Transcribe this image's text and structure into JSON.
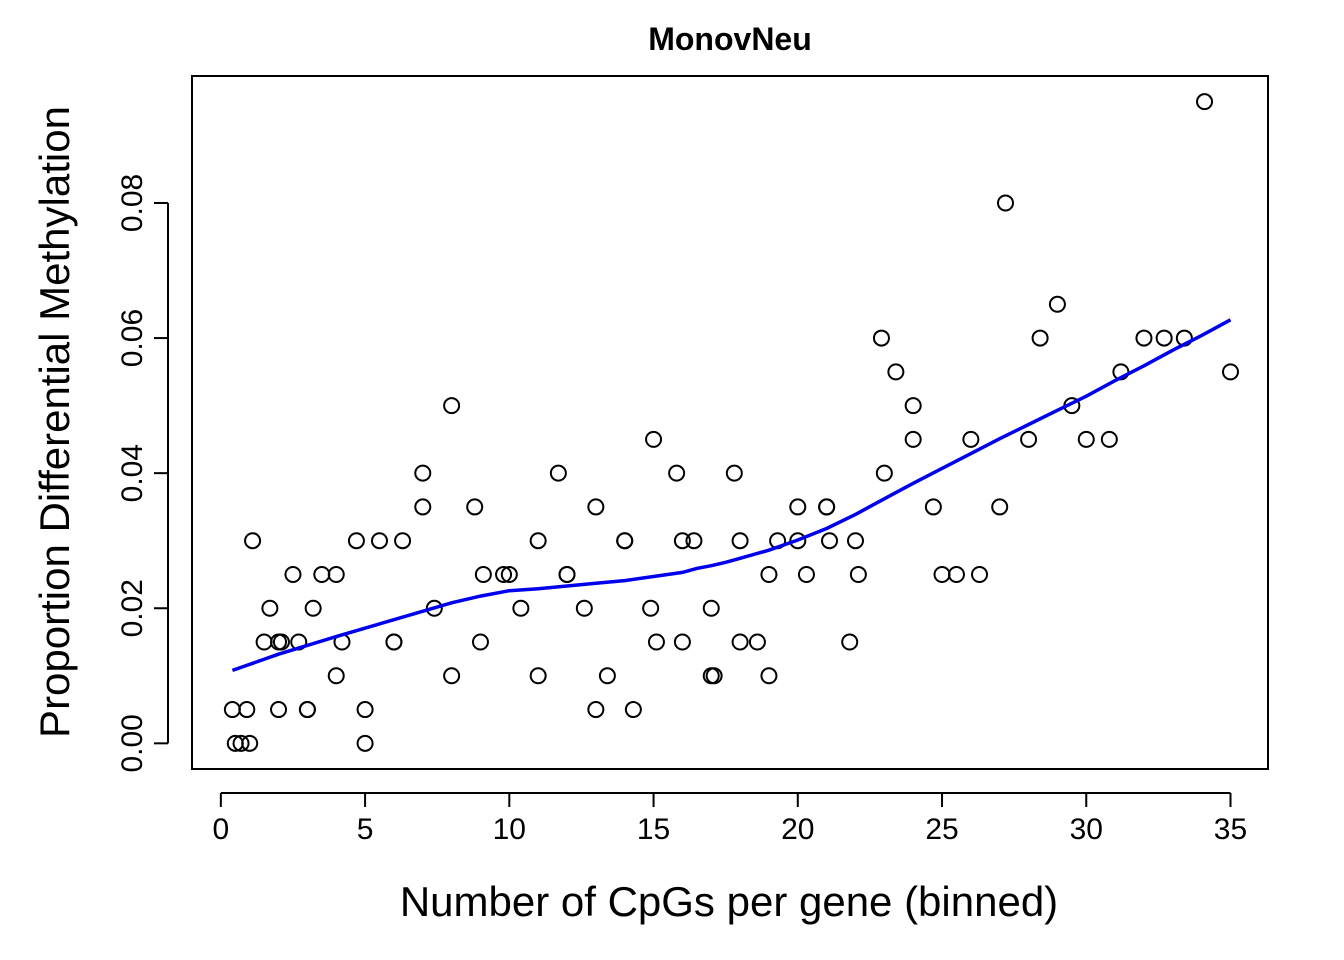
{
  "chart_data": {
    "type": "scatter",
    "title": "MonovNeu",
    "xlabel": "Number of CpGs per gene (binned)",
    "ylabel": "Proportion Differential Methylation",
    "xlim": [
      -1,
      36.3
    ],
    "ylim": [
      -0.0038,
      0.0988
    ],
    "xticks": [
      0,
      5,
      10,
      15,
      20,
      25,
      30,
      35
    ],
    "yticks": [
      0.0,
      0.02,
      0.04,
      0.06,
      0.08
    ],
    "ytick_labels": [
      "0.00",
      "0.02",
      "0.04",
      "0.06",
      "0.08"
    ],
    "grid": false,
    "legend": "none",
    "point_marker": "open-circle",
    "trend_color": "#0000ee",
    "points": [
      {
        "x": 0.4,
        "y": 0.005
      },
      {
        "x": 0.5,
        "y": 0.0
      },
      {
        "x": 0.7,
        "y": 0.0
      },
      {
        "x": 0.9,
        "y": 0.005
      },
      {
        "x": 1.0,
        "y": 0.0
      },
      {
        "x": 1.1,
        "y": 0.03
      },
      {
        "x": 1.5,
        "y": 0.015
      },
      {
        "x": 1.7,
        "y": 0.02
      },
      {
        "x": 2.0,
        "y": 0.015
      },
      {
        "x": 2.0,
        "y": 0.005
      },
      {
        "x": 2.1,
        "y": 0.015
      },
      {
        "x": 2.5,
        "y": 0.025
      },
      {
        "x": 2.7,
        "y": 0.015
      },
      {
        "x": 3.0,
        "y": 0.005
      },
      {
        "x": 3.0,
        "y": 0.005
      },
      {
        "x": 3.2,
        "y": 0.02
      },
      {
        "x": 3.5,
        "y": 0.025
      },
      {
        "x": 4.0,
        "y": 0.025
      },
      {
        "x": 4.0,
        "y": 0.01
      },
      {
        "x": 4.2,
        "y": 0.015
      },
      {
        "x": 4.7,
        "y": 0.03
      },
      {
        "x": 5.0,
        "y": 0.005
      },
      {
        "x": 5.0,
        "y": 0.0
      },
      {
        "x": 5.5,
        "y": 0.03
      },
      {
        "x": 6.0,
        "y": 0.015
      },
      {
        "x": 6.0,
        "y": 0.015
      },
      {
        "x": 6.3,
        "y": 0.03
      },
      {
        "x": 7.0,
        "y": 0.04
      },
      {
        "x": 7.0,
        "y": 0.035
      },
      {
        "x": 7.4,
        "y": 0.02
      },
      {
        "x": 8.0,
        "y": 0.05
      },
      {
        "x": 8.0,
        "y": 0.01
      },
      {
        "x": 8.8,
        "y": 0.035
      },
      {
        "x": 9.0,
        "y": 0.015
      },
      {
        "x": 9.1,
        "y": 0.025
      },
      {
        "x": 9.8,
        "y": 0.025
      },
      {
        "x": 10.0,
        "y": 0.025
      },
      {
        "x": 10.4,
        "y": 0.02
      },
      {
        "x": 11.0,
        "y": 0.03
      },
      {
        "x": 11.0,
        "y": 0.01
      },
      {
        "x": 11.7,
        "y": 0.04
      },
      {
        "x": 12.0,
        "y": 0.025
      },
      {
        "x": 12.0,
        "y": 0.025
      },
      {
        "x": 12.6,
        "y": 0.02
      },
      {
        "x": 13.0,
        "y": 0.035
      },
      {
        "x": 13.0,
        "y": 0.005
      },
      {
        "x": 13.4,
        "y": 0.01
      },
      {
        "x": 14.0,
        "y": 0.03
      },
      {
        "x": 14.0,
        "y": 0.03
      },
      {
        "x": 14.3,
        "y": 0.005
      },
      {
        "x": 14.9,
        "y": 0.02
      },
      {
        "x": 15.0,
        "y": 0.045
      },
      {
        "x": 15.1,
        "y": 0.015
      },
      {
        "x": 15.8,
        "y": 0.04
      },
      {
        "x": 16.0,
        "y": 0.03
      },
      {
        "x": 16.0,
        "y": 0.015
      },
      {
        "x": 16.4,
        "y": 0.03
      },
      {
        "x": 17.0,
        "y": 0.02
      },
      {
        "x": 17.0,
        "y": 0.01
      },
      {
        "x": 17.1,
        "y": 0.01
      },
      {
        "x": 17.8,
        "y": 0.04
      },
      {
        "x": 18.0,
        "y": 0.03
      },
      {
        "x": 18.0,
        "y": 0.015
      },
      {
        "x": 18.6,
        "y": 0.015
      },
      {
        "x": 19.0,
        "y": 0.025
      },
      {
        "x": 19.0,
        "y": 0.01
      },
      {
        "x": 19.3,
        "y": 0.03
      },
      {
        "x": 20.0,
        "y": 0.035
      },
      {
        "x": 20.0,
        "y": 0.03
      },
      {
        "x": 20.3,
        "y": 0.025
      },
      {
        "x": 21.0,
        "y": 0.035
      },
      {
        "x": 21.0,
        "y": 0.035
      },
      {
        "x": 21.1,
        "y": 0.03
      },
      {
        "x": 21.8,
        "y": 0.015
      },
      {
        "x": 22.0,
        "y": 0.03
      },
      {
        "x": 22.1,
        "y": 0.025
      },
      {
        "x": 22.9,
        "y": 0.06
      },
      {
        "x": 23.0,
        "y": 0.04
      },
      {
        "x": 23.4,
        "y": 0.055
      },
      {
        "x": 24.0,
        "y": 0.05
      },
      {
        "x": 24.0,
        "y": 0.045
      },
      {
        "x": 24.7,
        "y": 0.035
      },
      {
        "x": 25.0,
        "y": 0.025
      },
      {
        "x": 25.5,
        "y": 0.025
      },
      {
        "x": 26.0,
        "y": 0.045
      },
      {
        "x": 26.3,
        "y": 0.025
      },
      {
        "x": 27.0,
        "y": 0.035
      },
      {
        "x": 27.2,
        "y": 0.08
      },
      {
        "x": 28.0,
        "y": 0.045
      },
      {
        "x": 28.4,
        "y": 0.06
      },
      {
        "x": 29.0,
        "y": 0.065
      },
      {
        "x": 29.5,
        "y": 0.05
      },
      {
        "x": 30.0,
        "y": 0.045
      },
      {
        "x": 30.8,
        "y": 0.045
      },
      {
        "x": 31.2,
        "y": 0.055
      },
      {
        "x": 32.0,
        "y": 0.06
      },
      {
        "x": 32.7,
        "y": 0.06
      },
      {
        "x": 33.4,
        "y": 0.06
      },
      {
        "x": 34.1,
        "y": 0.095
      },
      {
        "x": 35.0,
        "y": 0.055
      }
    ],
    "trend": {
      "x": [
        0.4,
        2,
        4,
        6,
        8,
        9,
        10,
        11,
        12,
        13,
        14,
        15,
        16,
        16.5,
        17,
        17.5,
        18,
        19,
        20,
        21,
        22,
        23,
        24,
        25,
        26,
        27,
        28,
        29,
        30,
        31,
        32,
        33,
        34,
        35
      ],
      "y": [
        0.0108,
        0.0132,
        0.0158,
        0.0183,
        0.0208,
        0.0218,
        0.0226,
        0.0229,
        0.0233,
        0.0237,
        0.0241,
        0.0247,
        0.0253,
        0.0259,
        0.0263,
        0.0268,
        0.0274,
        0.0286,
        0.0301,
        0.0318,
        0.0339,
        0.0362,
        0.0385,
        0.0407,
        0.0429,
        0.0451,
        0.0472,
        0.0493,
        0.0514,
        0.0537,
        0.0559,
        0.0582,
        0.0604,
        0.0627
      ]
    }
  }
}
